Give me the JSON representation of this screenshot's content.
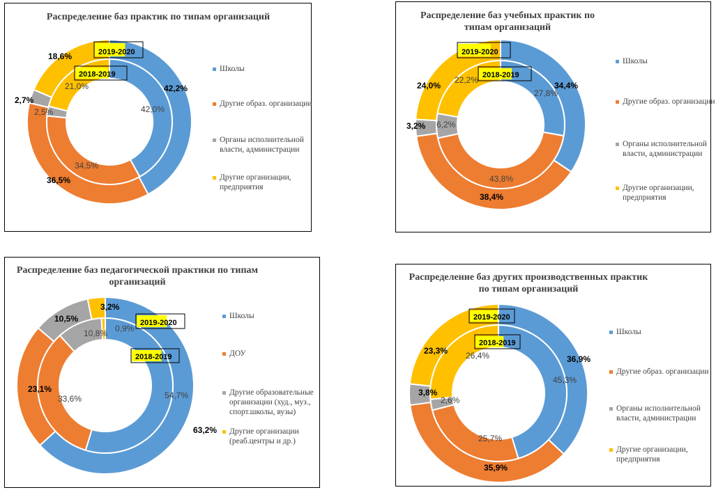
{
  "colors": {
    "blue": "#5b9bd5",
    "orange": "#ed7d31",
    "gray": "#a5a5a5",
    "yellow": "#ffc000"
  },
  "chart_data": [
    {
      "type": "pie",
      "title": "Распределение баз практик по типам организаций",
      "categories": [
        "Школы",
        "Другие образ. организации",
        "Органы исполнительной власти, администрации",
        "Другие организации, предприятия"
      ],
      "series": [
        {
          "name": "2019-2020",
          "values": [
            42.2,
            36.5,
            2.7,
            18.6
          ],
          "labels": [
            "42,2%",
            "36,5%",
            "2,7%",
            "18,6%"
          ]
        },
        {
          "name": "2018-2019",
          "values": [
            42.0,
            34.5,
            2.5,
            21.0
          ],
          "labels": [
            "42,0%",
            "34,5%",
            "2,5%",
            "21,0%"
          ]
        }
      ]
    },
    {
      "type": "pie",
      "title": "Распределение баз учебных практик по типам организаций",
      "categories": [
        "Школы",
        "Другие образ. организации",
        "Органы исполнительной власти, администрации",
        "Другие организации, предприятия"
      ],
      "series": [
        {
          "name": "2019-2020",
          "values": [
            34.4,
            38.4,
            3.2,
            24.0
          ],
          "labels": [
            "34,4%",
            "38,4%",
            "3,2%",
            "24,0%"
          ]
        },
        {
          "name": "2018-2019",
          "values": [
            27.8,
            43.8,
            6.2,
            22.2
          ],
          "labels": [
            "27,8%",
            "43,8%",
            "6,2%",
            "22,2%"
          ]
        }
      ]
    },
    {
      "type": "pie",
      "title": "Распределение баз педагогической практики по типам организаций",
      "categories": [
        "Школы",
        "ДОУ",
        "Другие образовательные организации (худ., муз., спорт.школы, вузы)",
        "Другие организации (реаб.центры и др.)"
      ],
      "series": [
        {
          "name": "2019-2020",
          "values": [
            63.2,
            23.1,
            10.5,
            3.2
          ],
          "labels": [
            "63,2%",
            "23,1%",
            "10,5%",
            "3,2%"
          ]
        },
        {
          "name": "2018-2019",
          "values": [
            54.7,
            33.6,
            10.8,
            0.9
          ],
          "labels": [
            "54,7%",
            "33,6%",
            "10,8%",
            "0,9%"
          ]
        }
      ]
    },
    {
      "type": "pie",
      "title": "Распределение баз других производственных практик по типам организаций",
      "categories": [
        "Школы",
        "Другие образ. организации",
        "Органы исполнительной власти, администрации",
        "Другие организации, предприятия"
      ],
      "series": [
        {
          "name": "2019-2020",
          "values": [
            36.9,
            35.9,
            3.8,
            23.3
          ],
          "labels": [
            "36,9%",
            "35,9%",
            "3,8%",
            "23,3%"
          ]
        },
        {
          "name": "2018-2019",
          "values": [
            45.3,
            25.7,
            2.6,
            26.4
          ],
          "labels": [
            "45,3%",
            "25,7%",
            "2,6%",
            "26,4%"
          ]
        }
      ]
    }
  ]
}
